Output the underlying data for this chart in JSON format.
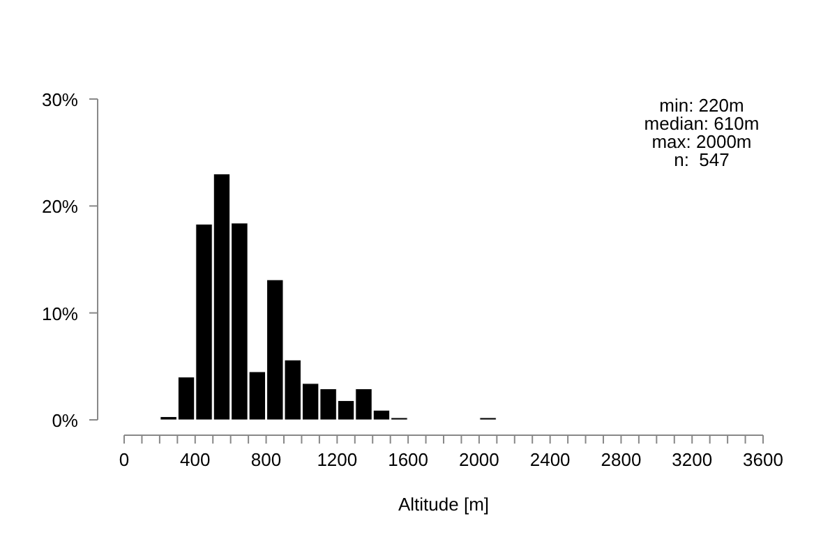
{
  "chart_data": {
    "type": "histogram",
    "xlabel": "Altitude [m]",
    "bins": [
      0,
      100,
      200,
      300,
      400,
      500,
      600,
      700,
      800,
      900,
      1000,
      1100,
      1200,
      1300,
      1400,
      1500,
      1600,
      1700,
      1800,
      1900,
      2000,
      2100,
      2200,
      2300,
      2400,
      2500,
      2600,
      2700,
      2800,
      2900,
      3000,
      3100,
      3200,
      3300,
      3400,
      3500,
      3600
    ],
    "values": [
      0,
      0,
      0.3,
      4.0,
      18.3,
      23.0,
      18.4,
      4.5,
      13.1,
      5.6,
      3.4,
      2.9,
      1.8,
      2.9,
      0.9,
      0.2,
      0,
      0,
      0,
      0,
      0.2,
      0,
      0,
      0,
      0,
      0,
      0,
      0,
      0,
      0,
      0,
      0,
      0,
      0,
      0,
      0
    ],
    "color": "#000000",
    "xlim": [
      0,
      3600
    ],
    "xticks": [
      0,
      {
        "value": 100,
        "label": null
      },
      {
        "value": 200,
        "label": null
      },
      {
        "value": 300,
        "label": null
      },
      400,
      {
        "value": 500,
        "label": null
      },
      {
        "value": 600,
        "label": null
      },
      {
        "value": 700,
        "label": null
      },
      800,
      {
        "value": 900,
        "label": null
      },
      {
        "value": 1000,
        "label": null
      },
      {
        "value": 1100,
        "label": null
      },
      1200,
      {
        "value": 1300,
        "label": null
      },
      {
        "value": 1400,
        "label": null
      },
      {
        "value": 1500,
        "label": null
      },
      1600,
      {
        "value": 1700,
        "label": null
      },
      {
        "value": 1800,
        "label": null
      },
      {
        "value": 1900,
        "label": null
      },
      2000,
      {
        "value": 2100,
        "label": null
      },
      {
        "value": 2200,
        "label": null
      },
      {
        "value": 2300,
        "label": null
      },
      2400,
      {
        "value": 2500,
        "label": null
      },
      {
        "value": 2600,
        "label": null
      },
      {
        "value": 2700,
        "label": null
      },
      2800,
      {
        "value": 2900,
        "label": null
      },
      {
        "value": 3000,
        "label": null
      },
      {
        "value": 3100,
        "label": null
      },
      3200,
      {
        "value": 3300,
        "label": null
      },
      {
        "value": 3400,
        "label": null
      },
      {
        "value": 3500,
        "label": null
      },
      3600
    ],
    "ylim": [
      0,
      30
    ],
    "yticks": [
      {
        "value": 0,
        "label": "0%"
      },
      {
        "value": 10,
        "label": "10%"
      },
      {
        "value": 20,
        "label": "20%"
      },
      {
        "value": 30,
        "label": "30%"
      }
    ],
    "annotations": [
      "min: 220m",
      "median: 610m",
      "max: 2000m",
      "n:  547"
    ]
  }
}
